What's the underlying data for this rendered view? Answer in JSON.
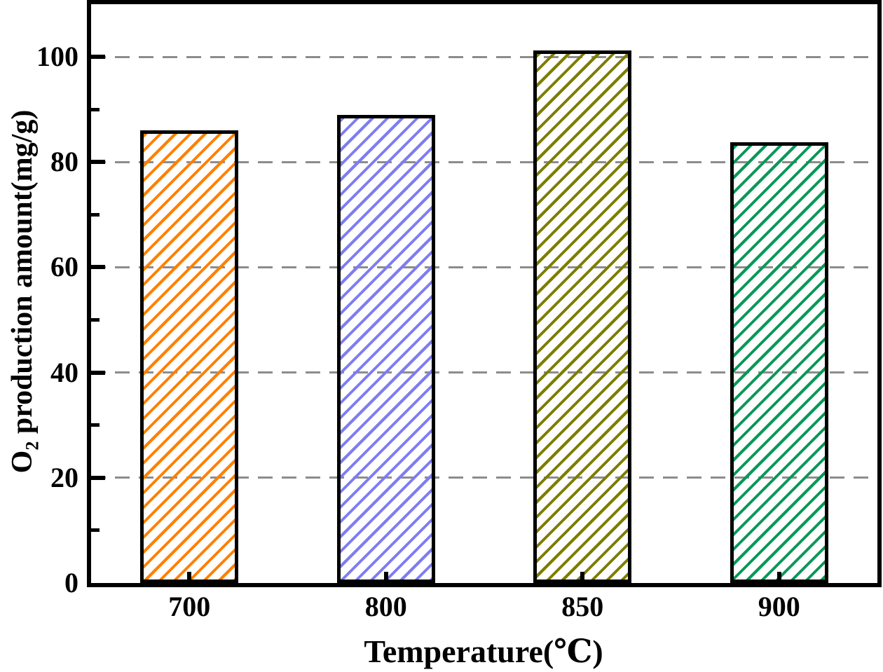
{
  "chart_data": {
    "type": "bar",
    "title": "",
    "xlabel": "Temperature(℃)",
    "ylabel": "O2 production amount(mg/g)",
    "ylabel_parts": {
      "pre": "O",
      "sub": "2",
      "post": " production amount(mg/g)"
    },
    "categories": [
      "700",
      "800",
      "850",
      "900"
    ],
    "values": [
      86.0,
      88.9,
      101.2,
      83.7
    ],
    "series": [
      {
        "category": "700",
        "value": 86.0,
        "hatch": "/",
        "color": "#ff8000"
      },
      {
        "category": "800",
        "value": 88.9,
        "hatch": "/",
        "color": "#7d7df2"
      },
      {
        "category": "850",
        "value": 101.2,
        "hatch": "/",
        "color": "#7d7d00"
      },
      {
        "category": "900",
        "value": 83.7,
        "hatch": "/",
        "color": "#0a9858"
      }
    ],
    "ylim": [
      0,
      110
    ],
    "yticks_major": [
      0,
      20,
      40,
      60,
      80,
      100
    ],
    "yticks_minor": [
      10,
      30,
      50,
      70,
      90
    ],
    "ytick_labels": [
      "0",
      "20",
      "40",
      "60",
      "80",
      "100"
    ],
    "grid": {
      "axis": "y",
      "style": "dashed",
      "color": "#8c8c8c",
      "on": "major-ticks"
    },
    "legend": "none",
    "bar_face": "transparent",
    "bar_edge_color": "#000000",
    "axis_color": "#000000",
    "background": "#ffffff"
  }
}
